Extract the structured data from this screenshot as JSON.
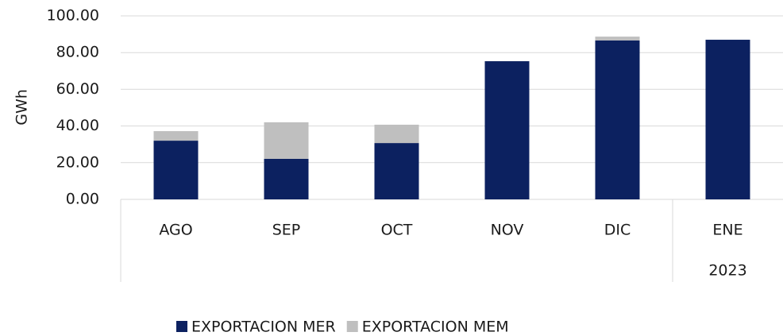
{
  "chart_data": {
    "type": "stacked_bar",
    "y_label": "GWh",
    "categories": [
      "AGO",
      "SEP",
      "OCT",
      "NOV",
      "DIC",
      "ENE"
    ],
    "x_group_labels": [
      null,
      null,
      null,
      null,
      null,
      "2023"
    ],
    "series": [
      {
        "name": "EXPORTACION MER",
        "color": "#0c2160",
        "values": [
          32.0,
          22.1,
          30.7,
          75.3,
          86.6,
          87.0
        ]
      },
      {
        "name": "EXPORTACION MEM",
        "color": "#bfbfbf",
        "values": [
          5.2,
          19.9,
          10.0,
          0,
          2.1,
          0
        ]
      }
    ],
    "ylim": [
      0,
      100
    ],
    "yticks": [
      {
        "value": 0,
        "label": "0.00"
      },
      {
        "value": 20,
        "label": "20.00"
      },
      {
        "value": 40,
        "label": "40.00"
      },
      {
        "value": 60,
        "label": "60.00"
      },
      {
        "value": 80,
        "label": "80.00"
      },
      {
        "value": 100,
        "label": "100.00"
      }
    ],
    "grid": true
  }
}
